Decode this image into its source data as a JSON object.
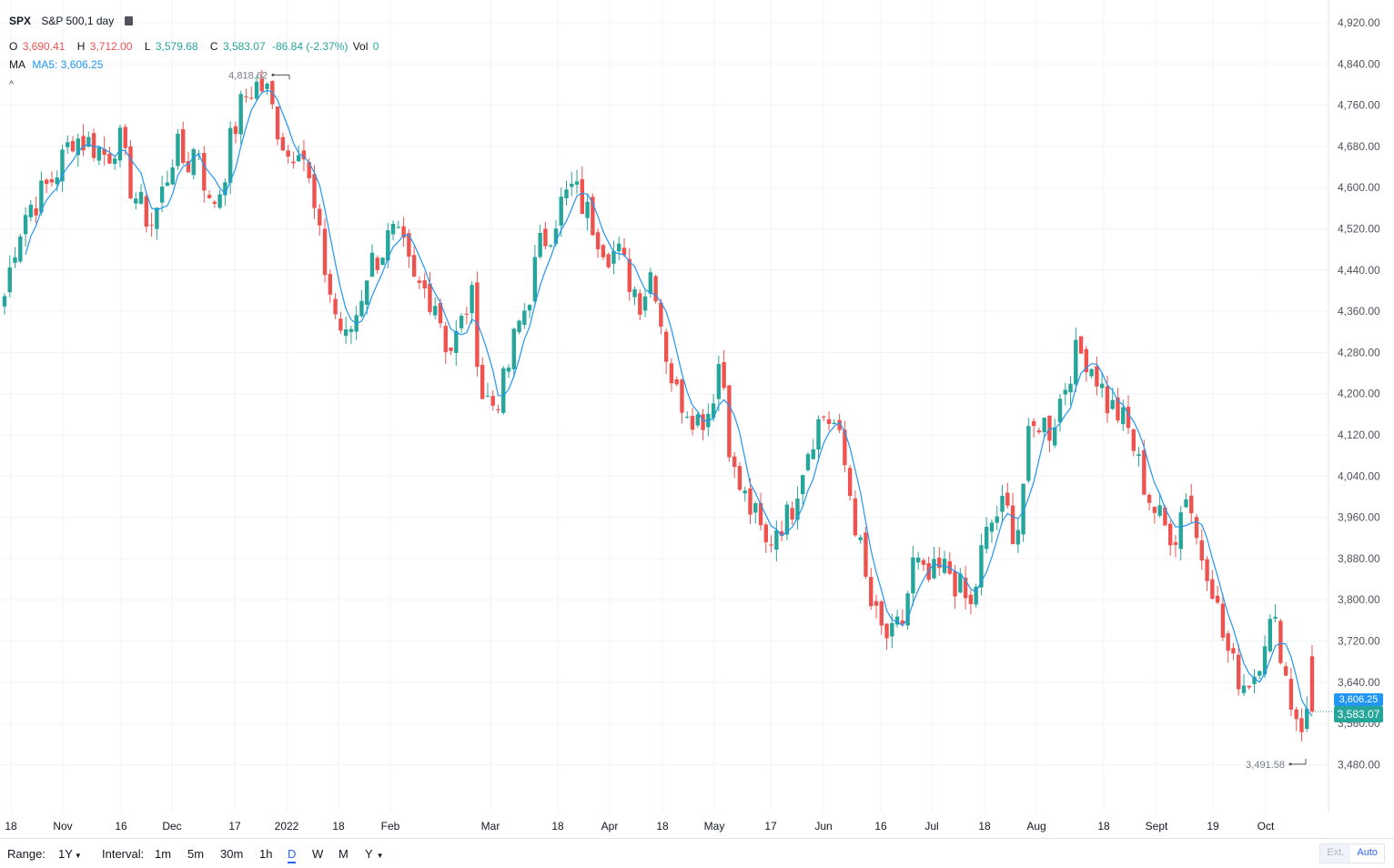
{
  "legend": {
    "symbol": "SPX",
    "description": "S&P 500,1 day",
    "icon": "list-icon",
    "o_label": "O",
    "o_value": "3,690.41",
    "h_label": "H",
    "h_value": "3,712.00",
    "l_label": "L",
    "l_value": "3,579.68",
    "c_label": "C",
    "c_value": "3,583.07",
    "change": "-86.84 (-2.37%)",
    "vol_label": "Vol",
    "vol_value": "0",
    "ma_label": "MA",
    "ma_value": "MA5: 3,606.25",
    "collapse": "^"
  },
  "price_axis": {
    "ticks": [
      "4,920.00",
      "4,840.00",
      "4,760.00",
      "4,680.00",
      "4,600.00",
      "4,520.00",
      "4,440.00",
      "4,360.00",
      "4,280.00",
      "4,200.00",
      "4,120.00",
      "4,040.00",
      "3,960.00",
      "3,880.00",
      "3,800.00",
      "3,720.00",
      "3,640.00",
      "3,560.00",
      "3,480.00"
    ],
    "ma_tag": "3,606.25",
    "last_tag": "3,583.07"
  },
  "time_axis": {
    "labels": [
      "18",
      "Nov",
      "16",
      "Dec",
      "17",
      "2022",
      "18",
      "Feb",
      "Mar",
      "18",
      "Apr",
      "18",
      "May",
      "17",
      "Jun",
      "16",
      "Jul",
      "18",
      "Aug",
      "18",
      "Sept",
      "19",
      "Oct"
    ]
  },
  "annotations": {
    "high": "4,818.62",
    "low": "3,491.58"
  },
  "bottom_bar": {
    "range_label": "Range:",
    "range_value": "1Y",
    "interval_label": "Interval:",
    "intervals": [
      "1m",
      "5m",
      "30m",
      "1h",
      "D",
      "W",
      "M",
      "Y"
    ],
    "active_interval": "D",
    "ext": "Ext.",
    "auto": "Auto"
  },
  "colors": {
    "up": "#26a69a",
    "down": "#ef5350",
    "ma": "#2196f3"
  },
  "chart_data": {
    "type": "candlestick",
    "series_name": "SPX",
    "y_range": [
      3440,
      4960
    ],
    "ma_period": 5,
    "last": {
      "open": 3690.41,
      "high": 3712.0,
      "low": 3579.68,
      "close": 3583.07
    },
    "high_annotation": 4818.62,
    "low_annotation": 3491.58,
    "close_path": [
      4390,
      4500,
      4560,
      4580,
      4610,
      4650,
      4700,
      4690,
      4680,
      4660,
      4700,
      4610,
      4560,
      4530,
      4600,
      4680,
      4640,
      4690,
      4560,
      4600,
      4700,
      4770,
      4800,
      4790,
      4720,
      4660,
      4700,
      4580,
      4460,
      4360,
      4300,
      4360,
      4450,
      4470,
      4510,
      4480,
      4410,
      4400,
      4380,
      4280,
      4320,
      4400,
      4200,
      4180,
      4220,
      4320,
      4380,
      4480,
      4520,
      4570,
      4600,
      4560,
      4520,
      4480,
      4470,
      4420,
      4380,
      4450,
      4300,
      4200,
      4180,
      4150,
      4170,
      4280,
      4050,
      4000,
      3960,
      3900,
      3950,
      3960,
      4050,
      4120,
      4160,
      4140,
      4050,
      3930,
      3800,
      3740,
      3720,
      3760,
      3880,
      3830,
      3850,
      3860,
      3820,
      3780,
      3900,
      3960,
      3980,
      3920,
      4100,
      4150,
      4130,
      4200,
      4270,
      4280,
      4240,
      4180,
      4160,
      4120,
      4040,
      3980,
      3940,
      3930,
      4020,
      3900,
      3860,
      3740,
      3670,
      3640,
      3660,
      3750,
      3740,
      3610,
      3560,
      3583
    ],
    "candles": "rendered from close_path with open = previous close; high/low derived"
  }
}
